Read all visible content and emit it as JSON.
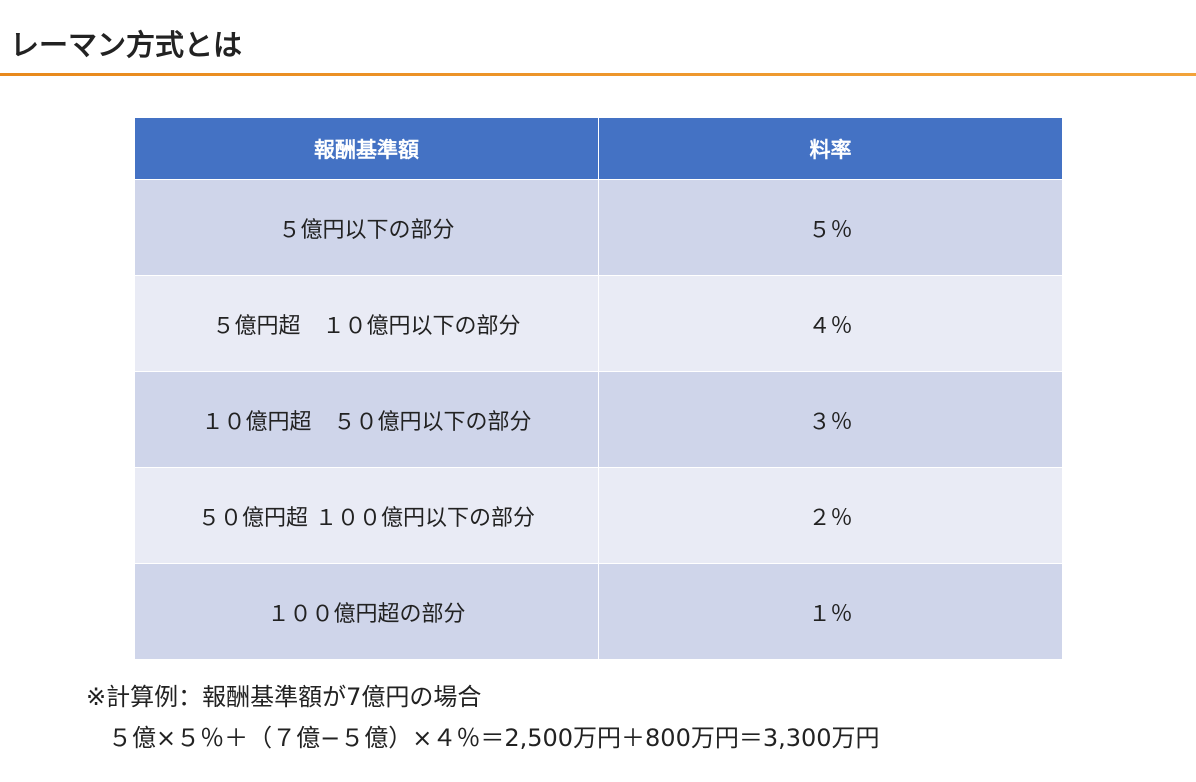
{
  "header": {
    "title": "レーマン方式とは"
  },
  "table": {
    "columns": [
      "報酬基準額",
      "料率"
    ],
    "rows": [
      [
        "５億円以下の部分",
        "５％"
      ],
      [
        "５億円超　１０億円以下の部分",
        "４％"
      ],
      [
        "１０億円超　５０億円以下の部分",
        "３％"
      ],
      [
        "５０億円超 １００億円以下の部分",
        "２％"
      ],
      [
        "１００億円超の部分",
        "１％"
      ]
    ]
  },
  "note": {
    "lines": [
      "※計算例：報酬基準額が7億円の場合",
      "５億×５％＋（７億−５億）×４％＝2,500万円＋800万円＝3,300万円"
    ]
  }
}
